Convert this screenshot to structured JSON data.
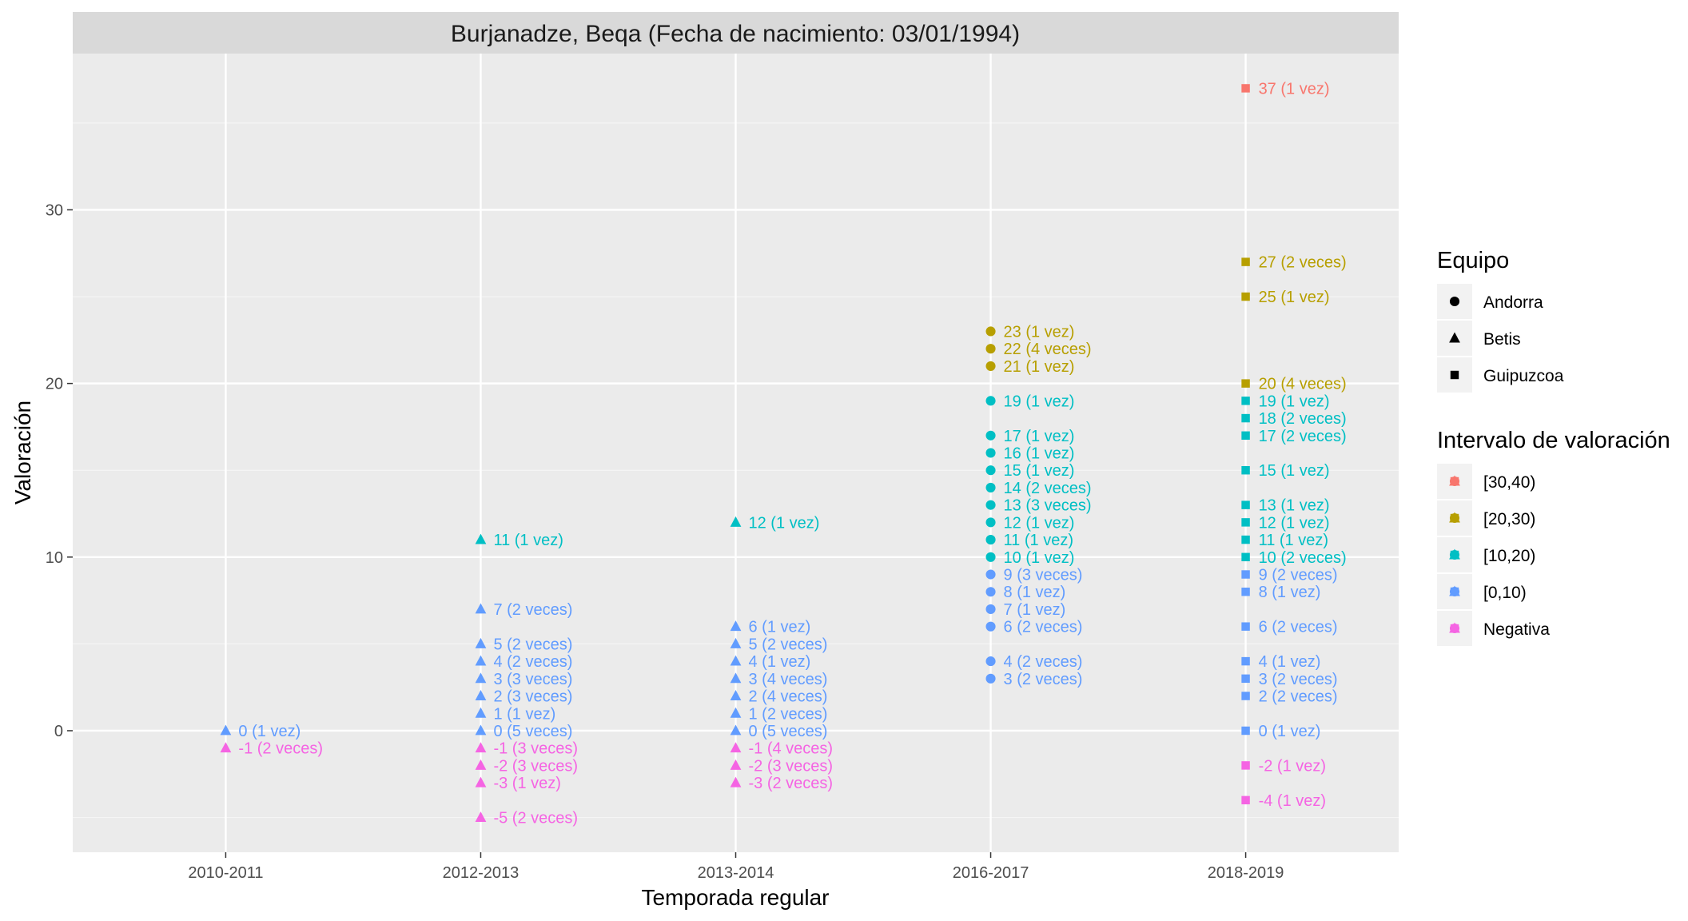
{
  "chart_data": {
    "type": "scatter",
    "title": "Burjanadze, Beqa (Fecha de nacimiento: 03/01/1994)",
    "xlabel": "Temporada regular",
    "ylabel": "Valoración",
    "categories": [
      "2010-2011",
      "2012-2013",
      "2013-2014",
      "2016-2017",
      "2018-2019"
    ],
    "ylim": [
      -7,
      39
    ],
    "yticks": [
      0,
      10,
      20,
      30
    ],
    "grid": true,
    "legend_position": "right",
    "colors": {
      "[30,40)": "#F8766D",
      "[20,30)": "#B79F00",
      "[10,20)": "#00BFC4",
      "[0,10)": "#619CFF",
      "Negativa": "#F564E3"
    },
    "legends": [
      {
        "title": "Equipo",
        "items": [
          {
            "label": "Andorra",
            "shape": "circle"
          },
          {
            "label": "Betis",
            "shape": "triangle"
          },
          {
            "label": "Guipuzcoa",
            "shape": "square"
          }
        ]
      },
      {
        "title": "Intervalo de valoración",
        "items": [
          {
            "label": "[30,40)",
            "color": "#F8766D"
          },
          {
            "label": "[20,30)",
            "color": "#B79F00"
          },
          {
            "label": "[10,20)",
            "color": "#00BFC4"
          },
          {
            "label": "[0,10)",
            "color": "#619CFF"
          },
          {
            "label": "Negativa",
            "color": "#F564E3"
          }
        ]
      }
    ],
    "points": [
      {
        "season": "2010-2011",
        "team": "Betis",
        "y": 0,
        "interval": "[0,10)",
        "label": "0 (1 vez)"
      },
      {
        "season": "2010-2011",
        "team": "Betis",
        "y": -1,
        "interval": "Negativa",
        "label": "-1 (2 veces)"
      },
      {
        "season": "2012-2013",
        "team": "Betis",
        "y": 11,
        "interval": "[10,20)",
        "label": "11 (1 vez)"
      },
      {
        "season": "2012-2013",
        "team": "Betis",
        "y": 7,
        "interval": "[0,10)",
        "label": "7 (2 veces)"
      },
      {
        "season": "2012-2013",
        "team": "Betis",
        "y": 5,
        "interval": "[0,10)",
        "label": "5 (2 veces)"
      },
      {
        "season": "2012-2013",
        "team": "Betis",
        "y": 4,
        "interval": "[0,10)",
        "label": "4 (2 veces)"
      },
      {
        "season": "2012-2013",
        "team": "Betis",
        "y": 3,
        "interval": "[0,10)",
        "label": "3 (3 veces)"
      },
      {
        "season": "2012-2013",
        "team": "Betis",
        "y": 2,
        "interval": "[0,10)",
        "label": "2 (3 veces)"
      },
      {
        "season": "2012-2013",
        "team": "Betis",
        "y": 1,
        "interval": "[0,10)",
        "label": "1 (1 vez)"
      },
      {
        "season": "2012-2013",
        "team": "Betis",
        "y": 0,
        "interval": "[0,10)",
        "label": "0 (5 veces)"
      },
      {
        "season": "2012-2013",
        "team": "Betis",
        "y": -1,
        "interval": "Negativa",
        "label": "-1 (3 veces)"
      },
      {
        "season": "2012-2013",
        "team": "Betis",
        "y": -2,
        "interval": "Negativa",
        "label": "-2 (3 veces)"
      },
      {
        "season": "2012-2013",
        "team": "Betis",
        "y": -3,
        "interval": "Negativa",
        "label": "-3 (1 vez)"
      },
      {
        "season": "2012-2013",
        "team": "Betis",
        "y": -5,
        "interval": "Negativa",
        "label": "-5 (2 veces)"
      },
      {
        "season": "2013-2014",
        "team": "Betis",
        "y": 12,
        "interval": "[10,20)",
        "label": "12 (1 vez)"
      },
      {
        "season": "2013-2014",
        "team": "Betis",
        "y": 6,
        "interval": "[0,10)",
        "label": "6 (1 vez)"
      },
      {
        "season": "2013-2014",
        "team": "Betis",
        "y": 5,
        "interval": "[0,10)",
        "label": "5 (2 veces)"
      },
      {
        "season": "2013-2014",
        "team": "Betis",
        "y": 4,
        "interval": "[0,10)",
        "label": "4 (1 vez)"
      },
      {
        "season": "2013-2014",
        "team": "Betis",
        "y": 3,
        "interval": "[0,10)",
        "label": "3 (4 veces)"
      },
      {
        "season": "2013-2014",
        "team": "Betis",
        "y": 2,
        "interval": "[0,10)",
        "label": "2 (4 veces)"
      },
      {
        "season": "2013-2014",
        "team": "Betis",
        "y": 1,
        "interval": "[0,10)",
        "label": "1 (2 veces)"
      },
      {
        "season": "2013-2014",
        "team": "Betis",
        "y": 0,
        "interval": "[0,10)",
        "label": "0 (5 veces)"
      },
      {
        "season": "2013-2014",
        "team": "Betis",
        "y": -1,
        "interval": "Negativa",
        "label": "-1 (4 veces)"
      },
      {
        "season": "2013-2014",
        "team": "Betis",
        "y": -2,
        "interval": "Negativa",
        "label": "-2 (3 veces)"
      },
      {
        "season": "2013-2014",
        "team": "Betis",
        "y": -3,
        "interval": "Negativa",
        "label": "-3 (2 veces)"
      },
      {
        "season": "2016-2017",
        "team": "Andorra",
        "y": 23,
        "interval": "[20,30)",
        "label": "23 (1 vez)"
      },
      {
        "season": "2016-2017",
        "team": "Andorra",
        "y": 22,
        "interval": "[20,30)",
        "label": "22 (4 veces)"
      },
      {
        "season": "2016-2017",
        "team": "Andorra",
        "y": 21,
        "interval": "[20,30)",
        "label": "21 (1 vez)"
      },
      {
        "season": "2016-2017",
        "team": "Andorra",
        "y": 19,
        "interval": "[10,20)",
        "label": "19 (1 vez)"
      },
      {
        "season": "2016-2017",
        "team": "Andorra",
        "y": 17,
        "interval": "[10,20)",
        "label": "17 (1 vez)"
      },
      {
        "season": "2016-2017",
        "team": "Andorra",
        "y": 16,
        "interval": "[10,20)",
        "label": "16 (1 vez)"
      },
      {
        "season": "2016-2017",
        "team": "Andorra",
        "y": 15,
        "interval": "[10,20)",
        "label": "15 (1 vez)"
      },
      {
        "season": "2016-2017",
        "team": "Andorra",
        "y": 14,
        "interval": "[10,20)",
        "label": "14 (2 veces)"
      },
      {
        "season": "2016-2017",
        "team": "Andorra",
        "y": 13,
        "interval": "[10,20)",
        "label": "13 (3 veces)"
      },
      {
        "season": "2016-2017",
        "team": "Andorra",
        "y": 12,
        "interval": "[10,20)",
        "label": "12 (1 vez)"
      },
      {
        "season": "2016-2017",
        "team": "Andorra",
        "y": 11,
        "interval": "[10,20)",
        "label": "11 (1 vez)"
      },
      {
        "season": "2016-2017",
        "team": "Andorra",
        "y": 10,
        "interval": "[10,20)",
        "label": "10 (1 vez)"
      },
      {
        "season": "2016-2017",
        "team": "Andorra",
        "y": 9,
        "interval": "[0,10)",
        "label": "9 (3 veces)"
      },
      {
        "season": "2016-2017",
        "team": "Andorra",
        "y": 8,
        "interval": "[0,10)",
        "label": "8 (1 vez)"
      },
      {
        "season": "2016-2017",
        "team": "Andorra",
        "y": 7,
        "interval": "[0,10)",
        "label": "7 (1 vez)"
      },
      {
        "season": "2016-2017",
        "team": "Andorra",
        "y": 6,
        "interval": "[0,10)",
        "label": "6 (2 veces)"
      },
      {
        "season": "2016-2017",
        "team": "Andorra",
        "y": 4,
        "interval": "[0,10)",
        "label": "4 (2 veces)"
      },
      {
        "season": "2016-2017",
        "team": "Andorra",
        "y": 3,
        "interval": "[0,10)",
        "label": "3 (2 veces)"
      },
      {
        "season": "2018-2019",
        "team": "Guipuzcoa",
        "y": 37,
        "interval": "[30,40)",
        "label": "37 (1 vez)"
      },
      {
        "season": "2018-2019",
        "team": "Guipuzcoa",
        "y": 27,
        "interval": "[20,30)",
        "label": "27 (2 veces)"
      },
      {
        "season": "2018-2019",
        "team": "Guipuzcoa",
        "y": 25,
        "interval": "[20,30)",
        "label": "25 (1 vez)"
      },
      {
        "season": "2018-2019",
        "team": "Guipuzcoa",
        "y": 20,
        "interval": "[20,30)",
        "label": "20 (4 veces)"
      },
      {
        "season": "2018-2019",
        "team": "Guipuzcoa",
        "y": 19,
        "interval": "[10,20)",
        "label": "19 (1 vez)"
      },
      {
        "season": "2018-2019",
        "team": "Guipuzcoa",
        "y": 18,
        "interval": "[10,20)",
        "label": "18 (2 veces)"
      },
      {
        "season": "2018-2019",
        "team": "Guipuzcoa",
        "y": 17,
        "interval": "[10,20)",
        "label": "17 (2 veces)"
      },
      {
        "season": "2018-2019",
        "team": "Guipuzcoa",
        "y": 15,
        "interval": "[10,20)",
        "label": "15 (1 vez)"
      },
      {
        "season": "2018-2019",
        "team": "Guipuzcoa",
        "y": 13,
        "interval": "[10,20)",
        "label": "13 (1 vez)"
      },
      {
        "season": "2018-2019",
        "team": "Guipuzcoa",
        "y": 12,
        "interval": "[10,20)",
        "label": "12 (1 vez)"
      },
      {
        "season": "2018-2019",
        "team": "Guipuzcoa",
        "y": 11,
        "interval": "[10,20)",
        "label": "11 (1 vez)"
      },
      {
        "season": "2018-2019",
        "team": "Guipuzcoa",
        "y": 10,
        "interval": "[10,20)",
        "label": "10 (2 veces)"
      },
      {
        "season": "2018-2019",
        "team": "Guipuzcoa",
        "y": 9,
        "interval": "[0,10)",
        "label": "9 (2 veces)"
      },
      {
        "season": "2018-2019",
        "team": "Guipuzcoa",
        "y": 8,
        "interval": "[0,10)",
        "label": "8 (1 vez)"
      },
      {
        "season": "2018-2019",
        "team": "Guipuzcoa",
        "y": 6,
        "interval": "[0,10)",
        "label": "6 (2 veces)"
      },
      {
        "season": "2018-2019",
        "team": "Guipuzcoa",
        "y": 4,
        "interval": "[0,10)",
        "label": "4 (1 vez)"
      },
      {
        "season": "2018-2019",
        "team": "Guipuzcoa",
        "y": 3,
        "interval": "[0,10)",
        "label": "3 (2 veces)"
      },
      {
        "season": "2018-2019",
        "team": "Guipuzcoa",
        "y": 2,
        "interval": "[0,10)",
        "label": "2 (2 veces)"
      },
      {
        "season": "2018-2019",
        "team": "Guipuzcoa",
        "y": 0,
        "interval": "[0,10)",
        "label": "0 (1 vez)"
      },
      {
        "season": "2018-2019",
        "team": "Guipuzcoa",
        "y": -2,
        "interval": "Negativa",
        "label": "-2 (1 vez)"
      },
      {
        "season": "2018-2019",
        "team": "Guipuzcoa",
        "y": -4,
        "interval": "Negativa",
        "label": "-4 (1 vez)"
      }
    ]
  }
}
